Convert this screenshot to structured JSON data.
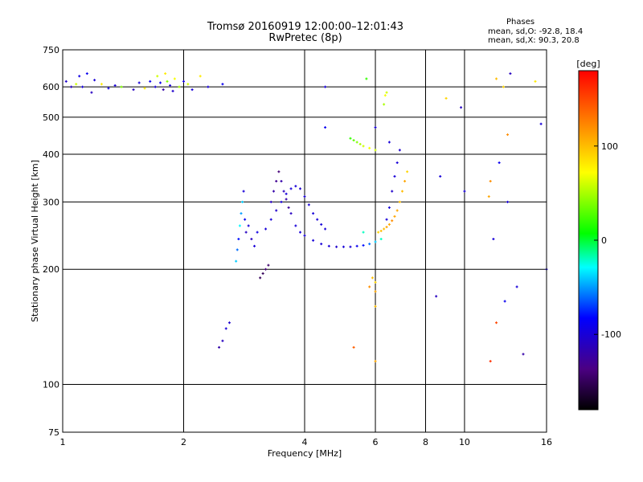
{
  "header": {
    "title": "Tromsø 20160919 12:00:00–12:01:43",
    "subtitle": "RwPretec (8p)",
    "stats_heading": "Phases",
    "stats_o": "mean, sd,O: -92.8, 18.4",
    "stats_x": "mean, sd,X:  90.3, 20.8"
  },
  "chart_data": {
    "type": "scatter",
    "xlabel": "Frequency [MHz]",
    "ylabel": "Stationary phase Virtual Height [km]",
    "xscale": "log",
    "yscale": "log",
    "xlim": [
      1,
      16
    ],
    "ylim": [
      75,
      750
    ],
    "grid": true,
    "x_ticks": [
      1,
      2,
      4,
      6,
      8,
      10,
      16
    ],
    "y_ticks": [
      75,
      100,
      200,
      300,
      400,
      500,
      600,
      750
    ],
    "colorbar": {
      "label": "[deg]",
      "range": [
        -180,
        180
      ],
      "ticks": [
        -100,
        0,
        100
      ],
      "colormap": "rainbow"
    },
    "series": [
      {
        "points": [
          [
            1.02,
            620,
            -105
          ],
          [
            1.05,
            600,
            -110
          ],
          [
            1.08,
            610,
            60
          ],
          [
            1.1,
            640,
            -95
          ],
          [
            1.12,
            600,
            -100
          ],
          [
            1.15,
            650,
            -90
          ],
          [
            1.18,
            580,
            -110
          ],
          [
            1.2,
            625,
            -100
          ],
          [
            1.25,
            610,
            80
          ],
          [
            1.3,
            595,
            -95
          ],
          [
            1.35,
            605,
            -100
          ],
          [
            1.4,
            600,
            40
          ],
          [
            1.5,
            590,
            -110
          ],
          [
            1.55,
            615,
            -100
          ],
          [
            1.6,
            595,
            80
          ],
          [
            1.65,
            620,
            -90
          ],
          [
            1.7,
            600,
            -100
          ],
          [
            1.72,
            640,
            60
          ],
          [
            1.75,
            615,
            -90
          ],
          [
            1.78,
            590,
            -120
          ],
          [
            1.8,
            650,
            80
          ],
          [
            1.82,
            620,
            40
          ],
          [
            1.85,
            605,
            -100
          ],
          [
            1.88,
            585,
            -105
          ],
          [
            1.9,
            630,
            70
          ],
          [
            1.95,
            600,
            50
          ],
          [
            2.0,
            620,
            -95
          ],
          [
            2.05,
            610,
            60
          ],
          [
            2.1,
            590,
            -100
          ],
          [
            2.2,
            640,
            80
          ],
          [
            2.3,
            600,
            -100
          ],
          [
            2.5,
            610,
            -90
          ],
          [
            2.45,
            125,
            -120
          ],
          [
            2.5,
            130,
            -110
          ],
          [
            2.55,
            140,
            -100
          ],
          [
            2.6,
            145,
            -105
          ],
          [
            2.7,
            210,
            -40
          ],
          [
            2.72,
            225,
            -60
          ],
          [
            2.74,
            240,
            -80
          ],
          [
            2.76,
            260,
            -30
          ],
          [
            2.78,
            280,
            -50
          ],
          [
            2.8,
            300,
            -40
          ],
          [
            2.82,
            320,
            -100
          ],
          [
            2.84,
            270,
            -90
          ],
          [
            2.86,
            250,
            -110
          ],
          [
            2.9,
            260,
            -100
          ],
          [
            2.95,
            240,
            -110
          ],
          [
            3.0,
            230,
            -100
          ],
          [
            3.05,
            250,
            -95
          ],
          [
            3.1,
            190,
            -150
          ],
          [
            3.15,
            195,
            -150
          ],
          [
            3.2,
            200,
            -140
          ],
          [
            3.25,
            205,
            -145
          ],
          [
            3.3,
            300,
            -110
          ],
          [
            3.35,
            320,
            -120
          ],
          [
            3.4,
            340,
            -130
          ],
          [
            3.45,
            360,
            -140
          ],
          [
            3.5,
            340,
            -120
          ],
          [
            3.55,
            320,
            -110
          ],
          [
            3.6,
            305,
            -120
          ],
          [
            3.65,
            290,
            -125
          ],
          [
            3.7,
            280,
            -110
          ],
          [
            3.2,
            255,
            -100
          ],
          [
            3.3,
            270,
            -100
          ],
          [
            3.4,
            285,
            -105
          ],
          [
            3.5,
            300,
            -100
          ],
          [
            3.6,
            315,
            -100
          ],
          [
            3.7,
            325,
            -100
          ],
          [
            3.8,
            330,
            -100
          ],
          [
            3.9,
            325,
            -105
          ],
          [
            4.0,
            310,
            -100
          ],
          [
            4.1,
            295,
            -100
          ],
          [
            4.2,
            280,
            -100
          ],
          [
            4.3,
            270,
            -100
          ],
          [
            4.4,
            262,
            -100
          ],
          [
            4.5,
            255,
            -100
          ],
          [
            3.8,
            260,
            -100
          ],
          [
            3.9,
            250,
            -100
          ],
          [
            4.0,
            245,
            -100
          ],
          [
            4.2,
            238,
            -100
          ],
          [
            4.4,
            233,
            -100
          ],
          [
            4.6,
            230,
            -100
          ],
          [
            4.8,
            229,
            -105
          ],
          [
            5.0,
            229,
            -100
          ],
          [
            5.2,
            229,
            -100
          ],
          [
            5.4,
            230,
            -90
          ],
          [
            5.6,
            231,
            -80
          ],
          [
            5.8,
            233,
            -60
          ],
          [
            6.0,
            236,
            -40
          ],
          [
            6.2,
            240,
            -20
          ],
          [
            5.2,
            440,
            20
          ],
          [
            5.3,
            435,
            30
          ],
          [
            5.4,
            430,
            40
          ],
          [
            5.5,
            425,
            50
          ],
          [
            5.6,
            420,
            60
          ],
          [
            5.8,
            415,
            70
          ],
          [
            6.0,
            410,
            60
          ],
          [
            6.1,
            250,
            90
          ],
          [
            6.2,
            252,
            100
          ],
          [
            6.3,
            255,
            100
          ],
          [
            6.4,
            258,
            110
          ],
          [
            6.5,
            262,
            110
          ],
          [
            6.6,
            268,
            120
          ],
          [
            6.7,
            275,
            110
          ],
          [
            6.8,
            285,
            110
          ],
          [
            6.9,
            300,
            100
          ],
          [
            7.0,
            320,
            100
          ],
          [
            7.1,
            340,
            110
          ],
          [
            7.2,
            360,
            90
          ],
          [
            6.4,
            270,
            -100
          ],
          [
            6.5,
            290,
            -100
          ],
          [
            6.6,
            320,
            -105
          ],
          [
            6.7,
            350,
            -100
          ],
          [
            6.8,
            380,
            -100
          ],
          [
            6.9,
            410,
            -105
          ],
          [
            6.3,
            540,
            50
          ],
          [
            6.35,
            570,
            70
          ],
          [
            6.4,
            580,
            60
          ],
          [
            4.5,
            600,
            -100
          ],
          [
            5.7,
            630,
            20
          ],
          [
            4.5,
            470,
            -90
          ],
          [
            6.0,
            470,
            -100
          ],
          [
            6.5,
            430,
            -100
          ],
          [
            8.5,
            170,
            -110
          ],
          [
            8.7,
            350,
            -100
          ],
          [
            9.0,
            560,
            90
          ],
          [
            9.8,
            530,
            -110
          ],
          [
            10.0,
            320,
            -100
          ],
          [
            11.5,
            310,
            110
          ],
          [
            11.6,
            340,
            120
          ],
          [
            11.8,
            240,
            -100
          ],
          [
            12.0,
            630,
            100
          ],
          [
            12.2,
            380,
            -90
          ],
          [
            12.5,
            600,
            90
          ],
          [
            12.8,
            450,
            120
          ],
          [
            12.6,
            165,
            -90
          ],
          [
            12.8,
            300,
            -100
          ],
          [
            13.0,
            650,
            -110
          ],
          [
            13.5,
            180,
            -100
          ],
          [
            14.0,
            120,
            -120
          ],
          [
            15.0,
            620,
            80
          ],
          [
            15.5,
            480,
            -100
          ],
          [
            16.0,
            200,
            -100
          ],
          [
            5.6,
            250,
            -20
          ],
          [
            5.8,
            180,
            120
          ],
          [
            5.9,
            190,
            100
          ],
          [
            6.0,
            185,
            90
          ],
          [
            6.0,
            175,
            110
          ],
          [
            6.0,
            160,
            100
          ],
          [
            6.0,
            115,
            110
          ],
          [
            5.3,
            125,
            140
          ],
          [
            12.0,
            145,
            150
          ],
          [
            11.6,
            115,
            160
          ]
        ]
      }
    ]
  },
  "colors": {
    "grid": "#000000",
    "background": "#ffffff"
  }
}
